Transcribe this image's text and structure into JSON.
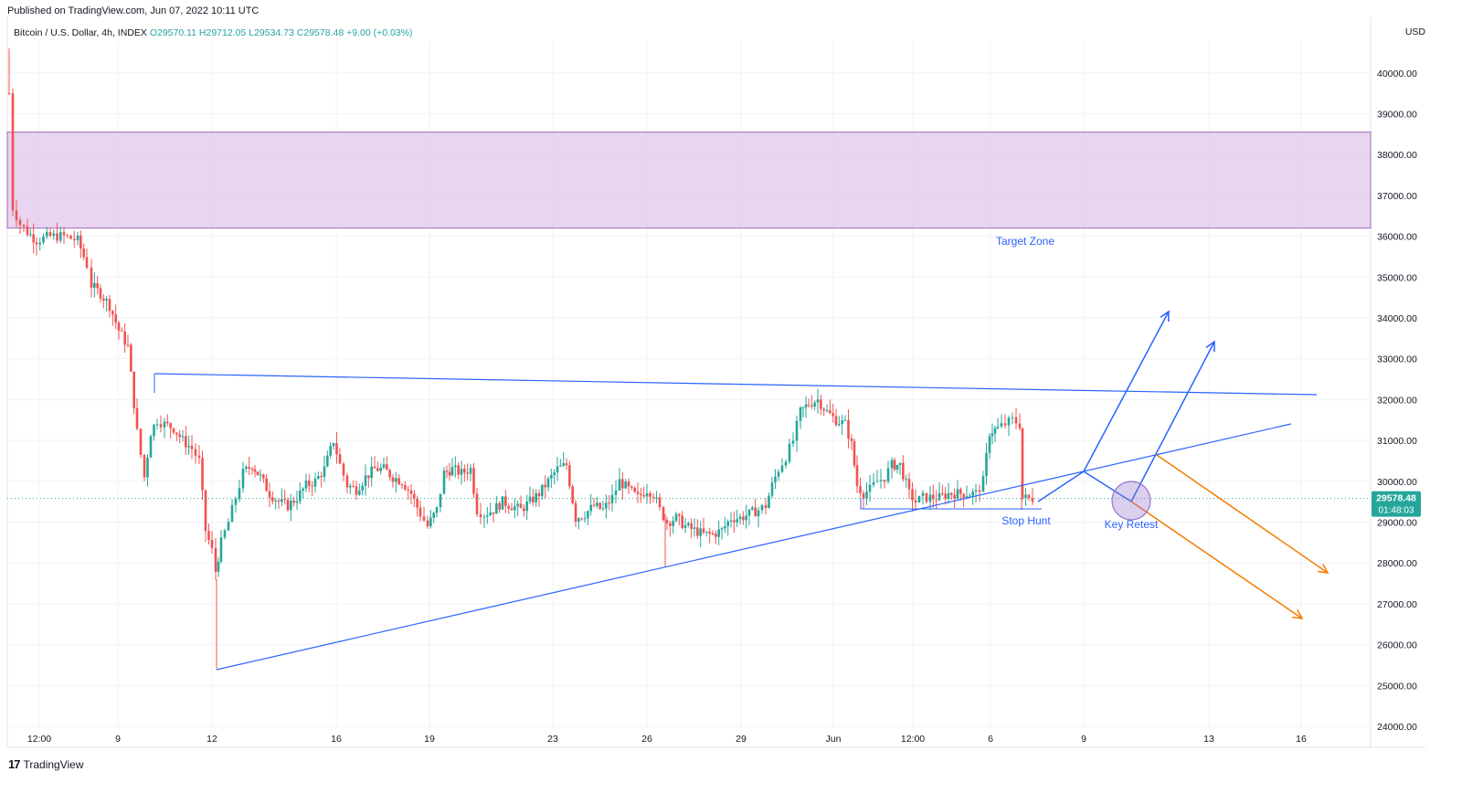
{
  "header": {
    "published": "Published on TradingView.com, Jun 07, 2022 10:11 UTC"
  },
  "legend": {
    "symbol": "Bitcoin / U.S. Dollar, 4h, INDEX",
    "open": "O29570.11",
    "high": "H29712.05",
    "low": "L29534.73",
    "close": "C29578.48",
    "change": "+9.00 (+0.03%)"
  },
  "price_axis": {
    "currency": "USD",
    "last_price": "29578.48",
    "countdown": "01:48:03"
  },
  "footer": {
    "brand": "TradingView"
  },
  "colors": {
    "up": "#26a69a",
    "down": "#ef5350",
    "zone_fill": "#e1c6ec",
    "zone_border": "#9c6bb5",
    "trendline": "#2962ff",
    "projection_blue": "#2962ff",
    "projection_orange": "#f57c00",
    "retest_circle": "#9575cd"
  },
  "chart_data": {
    "type": "candlestick",
    "ylim": [
      24000,
      41000
    ],
    "y_ticks": [
      24000,
      25000,
      26000,
      27000,
      28000,
      29000,
      30000,
      31000,
      32000,
      33000,
      34000,
      35000,
      36000,
      37000,
      38000,
      39000,
      40000
    ],
    "y_tick_labels": [
      "24000.00",
      "25000.00",
      "26000.00",
      "27000.00",
      "28000.00",
      "29000.00",
      "30000.00",
      "31000.00",
      "32000.00",
      "33000.00",
      "34000.00",
      "35000.00",
      "36000.00",
      "37000.00",
      "38000.00",
      "39000.00",
      "40000.00"
    ],
    "x_ticks": [
      "12:00",
      "9",
      "12",
      "16",
      "19",
      "23",
      "26",
      "29",
      "Jun",
      "12:00",
      "6",
      "9",
      "13",
      "16"
    ],
    "target_zone": {
      "low": 36200,
      "high": 38550,
      "label": "Target Zone"
    },
    "annotations": [
      "Stop Hunt",
      "Key Retest"
    ],
    "last_close": 29578.48
  }
}
